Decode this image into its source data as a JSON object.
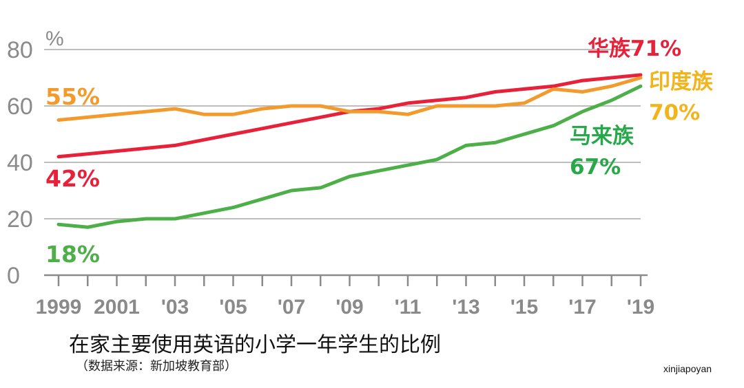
{
  "chart_data": {
    "type": "line",
    "title": "在家主要使用英语的小学一年学生的比例",
    "subtitle": "（数据来源：新加坡教育部）",
    "ylabel": "%",
    "ylim": [
      0,
      80
    ],
    "yticks": [
      0,
      20,
      40,
      60,
      80
    ],
    "grid": true,
    "x": [
      1999,
      2000,
      2001,
      2002,
      2003,
      2004,
      2005,
      2006,
      2007,
      2008,
      2009,
      2010,
      2011,
      2012,
      2013,
      2014,
      2015,
      2016,
      2017,
      2018,
      2019
    ],
    "xtick_values": [
      1999,
      2001,
      2003,
      2005,
      2007,
      2009,
      2011,
      2013,
      2015,
      2017,
      2019
    ],
    "xtick_labels": [
      "1999",
      "2001",
      "'03",
      "'05",
      "'07",
      "'09",
      "'11",
      "'13",
      "'15",
      "'17",
      "'19"
    ],
    "series": [
      {
        "name": "华族",
        "color": "#e8213b",
        "values": [
          42,
          43,
          44,
          45,
          46,
          48,
          50,
          52,
          54,
          56,
          58,
          59,
          61,
          62,
          63,
          65,
          66,
          67,
          69,
          70,
          71
        ],
        "start_label": "42%",
        "end_label": "华族71%"
      },
      {
        "name": "印度族",
        "color": "#f39a2c",
        "values": [
          55,
          56,
          57,
          58,
          59,
          57,
          57,
          59,
          60,
          60,
          58,
          58,
          57,
          60,
          60,
          60,
          61,
          66,
          65,
          67,
          70
        ],
        "start_label": "55%",
        "end_label_name": "印度族",
        "end_label_value": "70%",
        "end_label_color": "#f2b41b"
      },
      {
        "name": "马来族",
        "color": "#4caf47",
        "values": [
          18,
          17,
          19,
          20,
          20,
          22,
          24,
          27,
          30,
          31,
          35,
          37,
          39,
          41,
          46,
          47,
          50,
          53,
          58,
          62,
          67
        ],
        "start_label": "18%",
        "end_label_name": "马来族",
        "end_label_value": "67%",
        "end_label_color": "#27a84a"
      }
    ]
  },
  "credit": "xinjiapoyan"
}
